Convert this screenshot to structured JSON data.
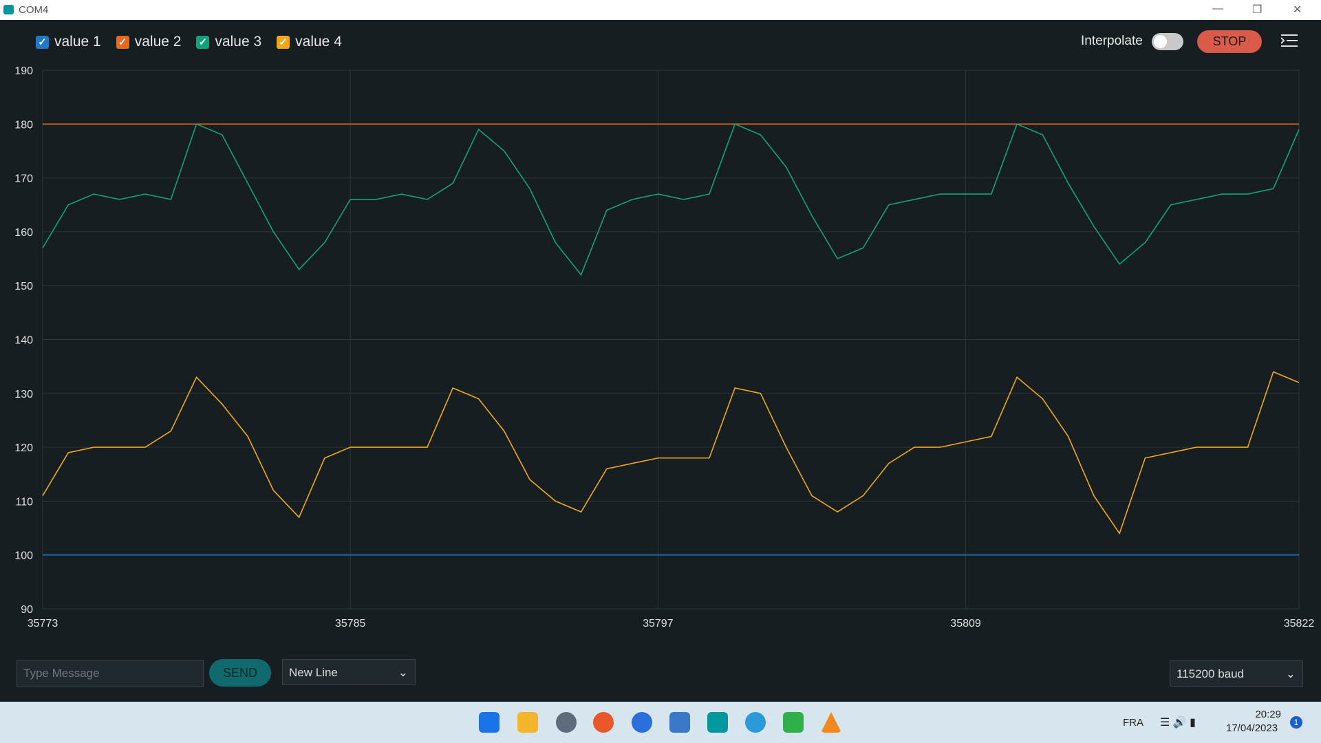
{
  "window": {
    "title": "COM4"
  },
  "toolbar": {
    "interpolate": "Interpolate",
    "stop": "STOP"
  },
  "input": {
    "placeholder": "Type Message",
    "send": "SEND",
    "line_ending": "New Line",
    "baud": "115200 baud"
  },
  "taskbar": {
    "language": "FRA",
    "time": "20:29",
    "date": "17/04/2023",
    "notifications": 1
  },
  "chart_data": {
    "type": "line",
    "x": [
      35773,
      35774,
      35775,
      35776,
      35777,
      35778,
      35779,
      35780,
      35781,
      35782,
      35783,
      35784,
      35785,
      35786,
      35787,
      35788,
      35789,
      35790,
      35791,
      35792,
      35793,
      35794,
      35795,
      35796,
      35797,
      35798,
      35799,
      35800,
      35801,
      35802,
      35803,
      35804,
      35805,
      35806,
      35807,
      35808,
      35809,
      35810,
      35811,
      35812,
      35813,
      35814,
      35815,
      35816,
      35817,
      35818,
      35819,
      35820,
      35821,
      35822
    ],
    "series": [
      {
        "name": "value 1",
        "color": "#1f78c8",
        "values": [
          100,
          100,
          100,
          100,
          100,
          100,
          100,
          100,
          100,
          100,
          100,
          100,
          100,
          100,
          100,
          100,
          100,
          100,
          100,
          100,
          100,
          100,
          100,
          100,
          100,
          100,
          100,
          100,
          100,
          100,
          100,
          100,
          100,
          100,
          100,
          100,
          100,
          100,
          100,
          100,
          100,
          100,
          100,
          100,
          100,
          100,
          100,
          100,
          100,
          100
        ]
      },
      {
        "name": "value 2",
        "color": "#e8681c",
        "values": [
          180,
          180,
          180,
          180,
          180,
          180,
          180,
          180,
          180,
          180,
          180,
          180,
          180,
          180,
          180,
          180,
          180,
          180,
          180,
          180,
          180,
          180,
          180,
          180,
          180,
          180,
          180,
          180,
          180,
          180,
          180,
          180,
          180,
          180,
          180,
          180,
          180,
          180,
          180,
          180,
          180,
          180,
          180,
          180,
          180,
          180,
          180,
          180,
          180,
          180
        ]
      },
      {
        "name": "value 3",
        "color": "#10a37a",
        "values": [
          157,
          165,
          167,
          166,
          167,
          166,
          180,
          178,
          169,
          160,
          153,
          158,
          166,
          166,
          167,
          166,
          169,
          179,
          175,
          168,
          158,
          152,
          164,
          166,
          167,
          166,
          167,
          180,
          178,
          172,
          163,
          155,
          157,
          165,
          166,
          167,
          167,
          167,
          180,
          178,
          169,
          161,
          154,
          158,
          165,
          166,
          167,
          167,
          168,
          179
        ]
      },
      {
        "name": "value 4",
        "color": "#f0a81a",
        "values": [
          111,
          119,
          120,
          120,
          120,
          123,
          133,
          128,
          122,
          112,
          107,
          118,
          120,
          120,
          120,
          120,
          131,
          129,
          123,
          114,
          110,
          108,
          116,
          117,
          118,
          118,
          118,
          131,
          130,
          120,
          111,
          108,
          111,
          117,
          120,
          120,
          121,
          122,
          133,
          129,
          122,
          111,
          104,
          118,
          119,
          120,
          120,
          120,
          134,
          132
        ]
      }
    ],
    "xlim": [
      35773,
      35822
    ],
    "xticks": [
      35773,
      35785,
      35797,
      35809,
      35822
    ],
    "ylim": [
      90,
      190
    ],
    "yticks": [
      90,
      100,
      110,
      120,
      130,
      140,
      150,
      160,
      170,
      180,
      190
    ],
    "grid": true
  }
}
